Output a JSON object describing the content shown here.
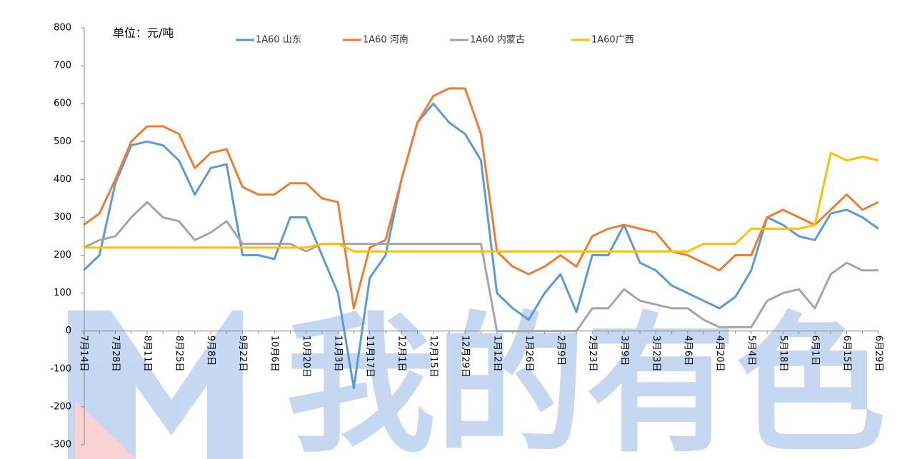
{
  "chart_data": {
    "type": "line",
    "unit_label": "单位：元/吨",
    "watermark": "我的有色",
    "categories": [
      "7月14日",
      null,
      "7月28日",
      null,
      "8月11日",
      null,
      "8月25日",
      null,
      "9月8日",
      null,
      "9月22日",
      null,
      "10月6日",
      null,
      "10月20日",
      null,
      "11月3日",
      null,
      "11月17日",
      null,
      "12月1日",
      null,
      "12月15日",
      null,
      "12月29日",
      null,
      "1月12日",
      null,
      "1月26日",
      null,
      "2月9日",
      null,
      "2月23日",
      null,
      "3月9日",
      null,
      "3月23日",
      null,
      "4月6日",
      null,
      "4月20日",
      null,
      "5月4日",
      null,
      "5月18日",
      null,
      "6月1日",
      null,
      "6月15日",
      null,
      "6月29日"
    ],
    "series": [
      {
        "name": "1A60 山东",
        "color": "#5b9bd5",
        "values": [
          160,
          200,
          390,
          490,
          500,
          490,
          450,
          360,
          430,
          440,
          200,
          200,
          190,
          300,
          300,
          200,
          100,
          -150,
          140,
          200,
          400,
          550,
          600,
          550,
          520,
          450,
          100,
          60,
          30,
          100,
          150,
          50,
          200,
          200,
          280,
          180,
          160,
          120,
          100,
          80,
          60,
          90,
          160,
          300,
          280,
          250,
          240,
          310,
          320,
          300,
          270
        ]
      },
      {
        "name": "1A60 河南",
        "color": "#ed7d31",
        "values": [
          280,
          310,
          400,
          500,
          540,
          540,
          520,
          430,
          470,
          480,
          380,
          360,
          360,
          390,
          390,
          350,
          340,
          60,
          220,
          240,
          400,
          550,
          620,
          640,
          640,
          520,
          210,
          170,
          150,
          170,
          200,
          170,
          250,
          270,
          280,
          270,
          260,
          210,
          200,
          180,
          160,
          200,
          200,
          300,
          320,
          300,
          280,
          320,
          360,
          320,
          340
        ]
      },
      {
        "name": "1A60 内蒙古",
        "color": "#a5a5a5",
        "values": [
          220,
          240,
          250,
          300,
          340,
          300,
          290,
          240,
          260,
          290,
          230,
          230,
          230,
          230,
          210,
          230,
          230,
          230,
          230,
          230,
          230,
          230,
          230,
          230,
          230,
          230,
          0,
          0,
          0,
          0,
          0,
          0,
          60,
          60,
          110,
          80,
          70,
          60,
          60,
          30,
          10,
          10,
          10,
          80,
          100,
          110,
          60,
          150,
          180,
          160,
          160
        ]
      },
      {
        "name": "1A60广西",
        "color": "#ffc000",
        "values": [
          220,
          220,
          220,
          220,
          220,
          220,
          220,
          220,
          220,
          220,
          220,
          220,
          220,
          220,
          220,
          230,
          230,
          210,
          210,
          210,
          210,
          210,
          210,
          210,
          210,
          210,
          210,
          210,
          210,
          210,
          210,
          210,
          210,
          210,
          210,
          210,
          210,
          210,
          210,
          230,
          230,
          230,
          270,
          270,
          270,
          270,
          280,
          470,
          450,
          460,
          450
        ]
      }
    ],
    "ylim": [
      -300,
      800
    ],
    "yticks": [
      -300,
      -200,
      -100,
      0,
      100,
      200,
      300,
      400,
      500,
      600,
      700,
      800
    ],
    "grid": false
  }
}
